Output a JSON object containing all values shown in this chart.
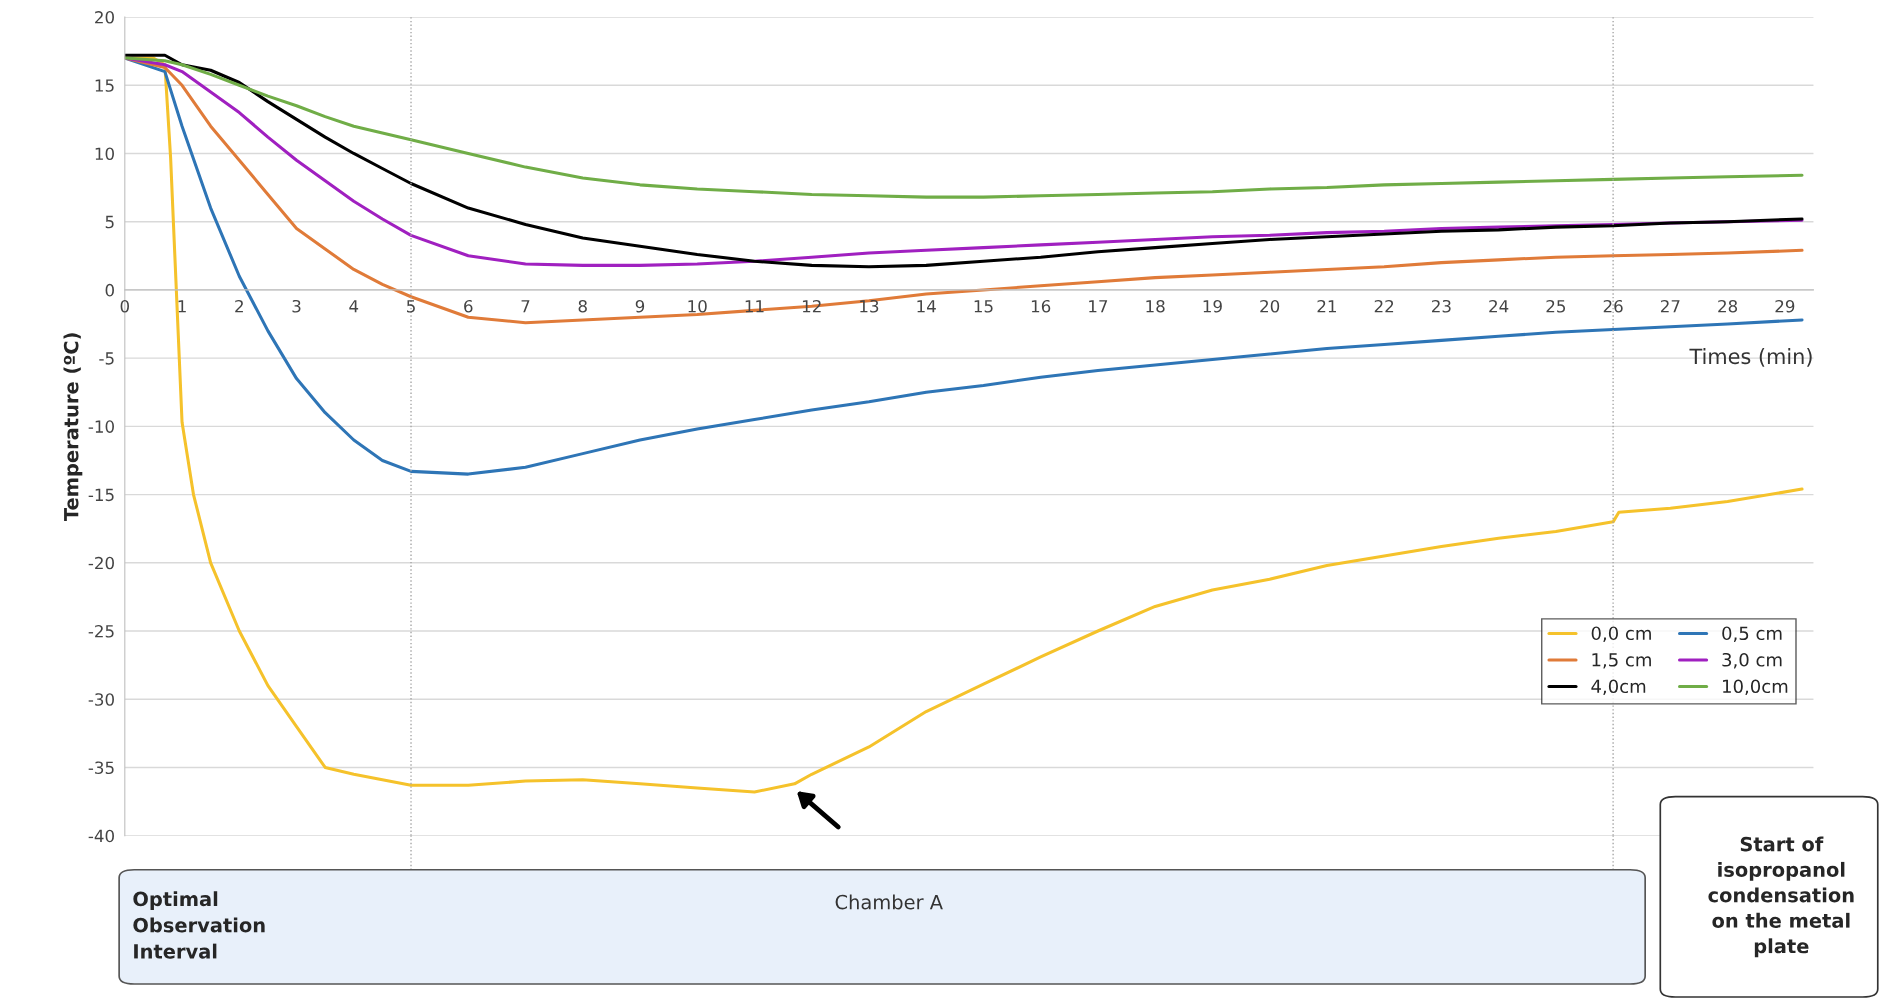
{
  "chart_data": {
    "type": "line",
    "xlabel": "Times (min)",
    "ylabel": "Temperature (ºC)",
    "x": [
      0,
      0.7,
      1,
      1.5,
      2,
      2.5,
      3,
      3.5,
      4,
      4.5,
      5,
      6,
      7,
      8,
      9,
      10,
      11,
      12,
      13,
      14,
      15,
      16,
      17,
      18,
      19,
      20,
      21,
      22,
      23,
      24,
      25,
      26,
      27,
      28,
      29.3
    ],
    "series": [
      {
        "name": "0,0 cm",
        "color": "#f5c22b",
        "x": [
          0,
          0.5,
          0.7,
          0.8,
          1,
          1.2,
          1.5,
          2,
          2.5,
          3,
          3.5,
          4,
          5,
          6,
          7,
          8,
          9,
          10,
          11,
          11.7,
          12,
          13,
          14,
          15,
          16,
          17,
          18,
          19,
          20,
          21,
          22,
          23,
          24,
          25,
          26,
          26.1,
          27,
          28,
          29.3
        ],
        "values": [
          17,
          17,
          16.5,
          9.7,
          -9.7,
          -15,
          -20,
          -25,
          -29,
          -32,
          -35,
          -35.5,
          -36.3,
          -36.3,
          -36,
          -35.9,
          -36.2,
          -36.5,
          -36.8,
          -36.2,
          -35.5,
          -33.5,
          -30.9,
          -28.9,
          -26.9,
          -25,
          -23.2,
          -22,
          -21.2,
          -20.2,
          -19.5,
          -18.8,
          -18.2,
          -17.7,
          -17,
          -16.3,
          -16,
          -15.5,
          -14.6
        ]
      },
      {
        "name": "0,5 cm",
        "color": "#2e75b6",
        "values": [
          17,
          16,
          12,
          6,
          1,
          -3,
          -6.5,
          -9,
          -11,
          -12.5,
          -13.3,
          -13.5,
          -13,
          -12,
          -11,
          -10.2,
          -9.5,
          -8.8,
          -8.2,
          -7.5,
          -7,
          -6.4,
          -5.9,
          -5.5,
          -5.1,
          -4.7,
          -4.3,
          -4,
          -3.7,
          -3.4,
          -3.1,
          -2.9,
          -2.7,
          -2.5,
          -2.2
        ]
      },
      {
        "name": "1,5 cm",
        "color": "#e07b39",
        "values": [
          17,
          16.3,
          15,
          12,
          9.5,
          7,
          4.5,
          3,
          1.5,
          0.4,
          -0.5,
          -2,
          -2.4,
          -2.2,
          -2,
          -1.8,
          -1.5,
          -1.2,
          -0.8,
          -0.3,
          0,
          0.3,
          0.6,
          0.9,
          1.1,
          1.3,
          1.5,
          1.7,
          2,
          2.2,
          2.4,
          2.5,
          2.6,
          2.7,
          2.9
        ]
      },
      {
        "name": "3,0 cm",
        "color": "#a020c0",
        "values": [
          17,
          16.5,
          16,
          14.5,
          13,
          11.2,
          9.5,
          8,
          6.5,
          5.2,
          4,
          2.5,
          1.9,
          1.8,
          1.8,
          1.9,
          2.1,
          2.4,
          2.7,
          2.9,
          3.1,
          3.3,
          3.5,
          3.7,
          3.9,
          4,
          4.2,
          4.3,
          4.5,
          4.6,
          4.7,
          4.8,
          4.9,
          5,
          5.1
        ]
      },
      {
        "name": "4,0cm",
        "color": "#000000",
        "values": [
          17.2,
          17.2,
          16.5,
          16.1,
          15.2,
          13.8,
          12.5,
          11.2,
          10,
          8.9,
          7.8,
          6,
          4.8,
          3.8,
          3.2,
          2.6,
          2.1,
          1.8,
          1.7,
          1.8,
          2.1,
          2.4,
          2.8,
          3.1,
          3.4,
          3.7,
          3.9,
          4.1,
          4.3,
          4.4,
          4.6,
          4.7,
          4.9,
          5,
          5.2
        ]
      },
      {
        "name": "10,0cm",
        "color": "#70ad47",
        "values": [
          17,
          16.8,
          16.5,
          15.8,
          15,
          14.2,
          13.5,
          12.7,
          12,
          11.5,
          11,
          10,
          9,
          8.2,
          7.7,
          7.4,
          7.2,
          7,
          6.9,
          6.8,
          6.8,
          6.9,
          7,
          7.1,
          7.2,
          7.4,
          7.5,
          7.7,
          7.8,
          7.9,
          8,
          8.1,
          8.2,
          8.3,
          8.4
        ]
      }
    ],
    "xlim": [
      0,
      29.5
    ],
    "ylim": [
      -40,
      20
    ],
    "xticks": [
      0,
      1,
      2,
      3,
      4,
      5,
      6,
      7,
      8,
      9,
      10,
      11,
      12,
      13,
      14,
      15,
      16,
      17,
      18,
      19,
      20,
      21,
      22,
      23,
      24,
      25,
      26,
      27,
      28,
      29
    ],
    "yticks": [
      -40,
      -35,
      -30,
      -25,
      -20,
      -15,
      -10,
      -5,
      0,
      5,
      10,
      15,
      20
    ],
    "grid": "y",
    "legend": "bottom right",
    "marker": "none",
    "line_style": "solid",
    "ref_lines": [
      {
        "axis": "x",
        "value": 5,
        "label": null,
        "color": "#a6a6a6",
        "line_style": "dotted"
      },
      {
        "axis": "x",
        "value": 26,
        "label": null,
        "color": "#a6a6a6",
        "line_style": "dotted"
      }
    ],
    "annotations": [
      "Optimal\nObservation\nInterval",
      "Chamber A",
      "Start of\nisopropanol\ncondensation\non the metal\nplate"
    ]
  }
}
